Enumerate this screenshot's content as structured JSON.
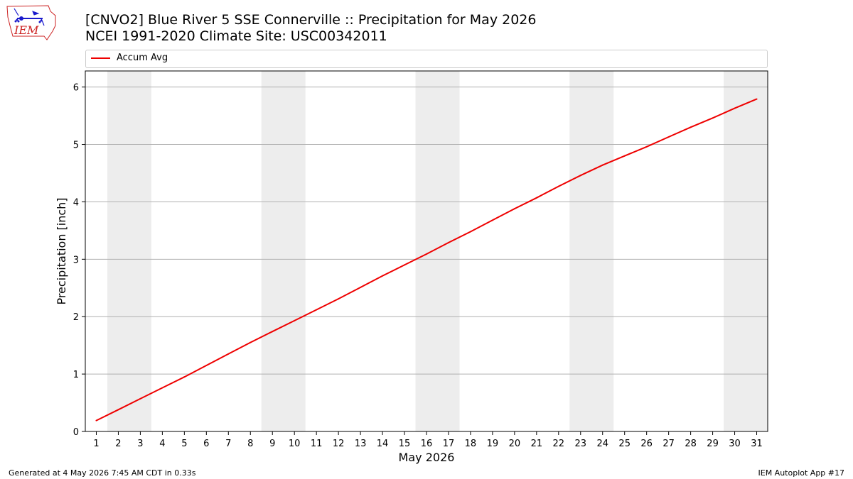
{
  "header": {
    "title_line1": "[CNVO2] Blue River 5 SSE Connerville :: Precipitation for May 2026",
    "title_line2": "NCEI 1991-2020 Climate Site: USC00342011",
    "logo_text": "IEM"
  },
  "footer": {
    "generated": "Generated at 4 May 2026 7:45 AM CDT in 0.33s",
    "app": "IEM Autoplot App #17"
  },
  "colors": {
    "line": "#ee0000",
    "weekend_band": "#ededed",
    "grid": "#b0b0b0",
    "logo": "#cc2222",
    "logo_icon": "#1a1acc"
  },
  "chart_data": {
    "type": "line",
    "title": "[CNVO2] Blue River 5 SSE Connerville :: Precipitation for May 2026",
    "xlabel": "May 2026",
    "ylabel": "Precipitation [inch]",
    "xlim": [
      0.5,
      31.5
    ],
    "ylim": [
      0,
      6.28
    ],
    "yticks": [
      0,
      1,
      2,
      3,
      4,
      5,
      6
    ],
    "x": [
      1,
      2,
      3,
      4,
      5,
      6,
      7,
      8,
      9,
      10,
      11,
      12,
      13,
      14,
      15,
      16,
      17,
      18,
      19,
      20,
      21,
      22,
      23,
      24,
      25,
      26,
      27,
      28,
      29,
      30,
      31
    ],
    "series": [
      {
        "name": "Accum Avg",
        "values": [
          0.19,
          0.38,
          0.57,
          0.76,
          0.95,
          1.15,
          1.35,
          1.55,
          1.74,
          1.93,
          2.12,
          2.31,
          2.51,
          2.71,
          2.9,
          3.09,
          3.29,
          3.48,
          3.68,
          3.88,
          4.07,
          4.27,
          4.46,
          4.64,
          4.8,
          4.96,
          5.13,
          5.3,
          5.46,
          5.63,
          5.79
        ]
      }
    ],
    "weekend_bands": [
      [
        1.5,
        3.5
      ],
      [
        8.5,
        10.5
      ],
      [
        15.5,
        17.5
      ],
      [
        22.5,
        24.5
      ],
      [
        29.5,
        31.5
      ]
    ],
    "grid": "horizontal",
    "legend_position": "top"
  }
}
